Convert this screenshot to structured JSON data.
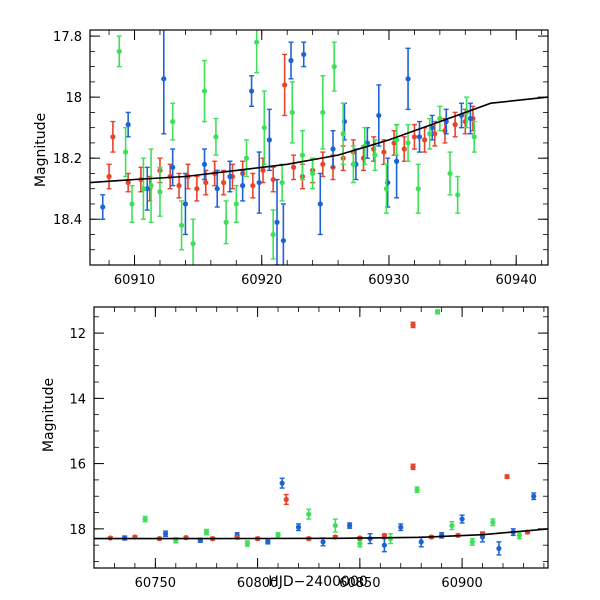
{
  "chart_data": [
    {
      "type": "scatter",
      "ylabel": "Magnitude",
      "xlabel": "",
      "xlim": [
        60906.5,
        60942.5
      ],
      "ylim": [
        18.55,
        17.78
      ],
      "y_inverted": true,
      "x_ticks": [
        60910,
        60920,
        60930,
        60940
      ],
      "y_ticks": [
        17.8,
        18,
        18.2,
        18.4
      ],
      "x_tick_labels": [
        "60910",
        "60920",
        "60930",
        "60940"
      ],
      "y_tick_labels": [
        "17.8",
        "18",
        "18.2",
        "18.4"
      ],
      "series": [
        {
          "color": "#e8432b",
          "points": [
            {
              "x": 60908.0,
              "y": 18.26,
              "err": 0.04
            },
            {
              "x": 60908.3,
              "y": 18.13,
              "err": 0.05
            },
            {
              "x": 60909.5,
              "y": 18.28,
              "err": 0.03
            },
            {
              "x": 60910.5,
              "y": 18.27,
              "err": 0.04
            },
            {
              "x": 60911.2,
              "y": 18.3,
              "err": 0.04
            },
            {
              "x": 60912.0,
              "y": 18.24,
              "err": 0.04
            },
            {
              "x": 60912.8,
              "y": 18.26,
              "err": 0.04
            },
            {
              "x": 60913.5,
              "y": 18.29,
              "err": 0.04
            },
            {
              "x": 60914.2,
              "y": 18.26,
              "err": 0.04
            },
            {
              "x": 60914.9,
              "y": 18.3,
              "err": 0.04
            },
            {
              "x": 60915.6,
              "y": 18.28,
              "err": 0.04
            },
            {
              "x": 60916.3,
              "y": 18.25,
              "err": 0.04
            },
            {
              "x": 60917.0,
              "y": 18.28,
              "err": 0.04
            },
            {
              "x": 60917.7,
              "y": 18.26,
              "err": 0.04
            },
            {
              "x": 60918.5,
              "y": 18.25,
              "err": 0.04
            },
            {
              "x": 60919.3,
              "y": 18.29,
              "err": 0.04
            },
            {
              "x": 60920.1,
              "y": 18.24,
              "err": 0.04
            },
            {
              "x": 60920.9,
              "y": 18.27,
              "err": 0.04
            },
            {
              "x": 60921.8,
              "y": 17.96,
              "err": 0.1
            },
            {
              "x": 60922.5,
              "y": 18.23,
              "err": 0.04
            },
            {
              "x": 60923.2,
              "y": 18.26,
              "err": 0.04
            },
            {
              "x": 60924.0,
              "y": 18.24,
              "err": 0.04
            },
            {
              "x": 60924.8,
              "y": 18.22,
              "err": 0.04
            },
            {
              "x": 60925.6,
              "y": 18.23,
              "err": 0.04
            },
            {
              "x": 60926.4,
              "y": 18.2,
              "err": 0.04
            },
            {
              "x": 60927.2,
              "y": 18.18,
              "err": 0.04
            },
            {
              "x": 60928.0,
              "y": 18.2,
              "err": 0.04
            },
            {
              "x": 60928.8,
              "y": 18.17,
              "err": 0.04
            },
            {
              "x": 60929.6,
              "y": 18.18,
              "err": 0.04
            },
            {
              "x": 60930.4,
              "y": 18.15,
              "err": 0.04
            },
            {
              "x": 60931.2,
              "y": 18.17,
              "err": 0.04
            },
            {
              "x": 60932.0,
              "y": 18.13,
              "err": 0.04
            },
            {
              "x": 60932.8,
              "y": 18.14,
              "err": 0.04
            },
            {
              "x": 60933.6,
              "y": 18.12,
              "err": 0.04
            },
            {
              "x": 60934.4,
              "y": 18.11,
              "err": 0.04
            },
            {
              "x": 60935.2,
              "y": 18.09,
              "err": 0.04
            },
            {
              "x": 60936.0,
              "y": 18.08,
              "err": 0.04
            },
            {
              "x": 60936.6,
              "y": 18.07,
              "err": 0.04
            }
          ]
        },
        {
          "color": "#1e63d6",
          "points": [
            {
              "x": 60907.5,
              "y": 18.36,
              "err": 0.04
            },
            {
              "x": 60909.5,
              "y": 18.09,
              "err": 0.04
            },
            {
              "x": 60911.0,
              "y": 18.3,
              "err": 0.07
            },
            {
              "x": 60912.3,
              "y": 17.94,
              "err": 0.18
            },
            {
              "x": 60913.0,
              "y": 18.23,
              "err": 0.06
            },
            {
              "x": 60914.0,
              "y": 18.35,
              "err": 0.1
            },
            {
              "x": 60915.5,
              "y": 18.22,
              "err": 0.05
            },
            {
              "x": 60916.5,
              "y": 18.3,
              "err": 0.06
            },
            {
              "x": 60917.5,
              "y": 18.26,
              "err": 0.05
            },
            {
              "x": 60918.5,
              "y": 18.29,
              "err": 0.05
            },
            {
              "x": 60919.2,
              "y": 17.98,
              "err": 0.05
            },
            {
              "x": 60919.8,
              "y": 18.28,
              "err": 0.1
            },
            {
              "x": 60920.6,
              "y": 18.14,
              "err": 0.1
            },
            {
              "x": 60921.2,
              "y": 18.41,
              "err": 0.14
            },
            {
              "x": 60921.7,
              "y": 18.47,
              "err": 0.12
            },
            {
              "x": 60922.3,
              "y": 17.88,
              "err": 0.06
            },
            {
              "x": 60923.3,
              "y": 17.86,
              "err": 0.04
            },
            {
              "x": 60924.6,
              "y": 18.35,
              "err": 0.1
            },
            {
              "x": 60925.6,
              "y": 18.17,
              "err": 0.06
            },
            {
              "x": 60926.5,
              "y": 18.08,
              "err": 0.06
            },
            {
              "x": 60927.4,
              "y": 18.22,
              "err": 0.05
            },
            {
              "x": 60928.3,
              "y": 18.15,
              "err": 0.05
            },
            {
              "x": 60929.2,
              "y": 18.06,
              "err": 0.1
            },
            {
              "x": 60929.9,
              "y": 18.28,
              "err": 0.08
            },
            {
              "x": 60930.6,
              "y": 18.21,
              "err": 0.12
            },
            {
              "x": 60931.5,
              "y": 17.94,
              "err": 0.1
            },
            {
              "x": 60932.4,
              "y": 18.13,
              "err": 0.05
            },
            {
              "x": 60933.4,
              "y": 18.1,
              "err": 0.04
            },
            {
              "x": 60934.5,
              "y": 18.08,
              "err": 0.04
            },
            {
              "x": 60935.7,
              "y": 18.06,
              "err": 0.04
            },
            {
              "x": 60936.4,
              "y": 18.07,
              "err": 0.05
            }
          ]
        },
        {
          "color": "#3ee05a",
          "points": [
            {
              "x": 60908.8,
              "y": 17.85,
              "err": 0.05
            },
            {
              "x": 60909.3,
              "y": 18.18,
              "err": 0.08
            },
            {
              "x": 60909.8,
              "y": 18.35,
              "err": 0.06
            },
            {
              "x": 60910.7,
              "y": 18.3,
              "err": 0.1
            },
            {
              "x": 60911.3,
              "y": 18.29,
              "err": 0.12
            },
            {
              "x": 60912.0,
              "y": 18.31,
              "err": 0.08
            },
            {
              "x": 60913.0,
              "y": 18.08,
              "err": 0.06
            },
            {
              "x": 60913.7,
              "y": 18.42,
              "err": 0.08
            },
            {
              "x": 60914.6,
              "y": 18.48,
              "err": 0.08
            },
            {
              "x": 60915.5,
              "y": 17.98,
              "err": 0.1
            },
            {
              "x": 60916.4,
              "y": 18.13,
              "err": 0.06
            },
            {
              "x": 60917.2,
              "y": 18.41,
              "err": 0.07
            },
            {
              "x": 60918.0,
              "y": 18.35,
              "err": 0.06
            },
            {
              "x": 60918.8,
              "y": 18.2,
              "err": 0.06
            },
            {
              "x": 60919.6,
              "y": 17.82,
              "err": 0.1
            },
            {
              "x": 60920.2,
              "y": 18.1,
              "err": 0.12
            },
            {
              "x": 60920.9,
              "y": 18.45,
              "err": 0.08
            },
            {
              "x": 60921.6,
              "y": 18.28,
              "err": 0.06
            },
            {
              "x": 60922.4,
              "y": 18.05,
              "err": 0.1
            },
            {
              "x": 60923.2,
              "y": 18.19,
              "err": 0.08
            },
            {
              "x": 60924.0,
              "y": 18.25,
              "err": 0.05
            },
            {
              "x": 60924.8,
              "y": 18.05,
              "err": 0.12
            },
            {
              "x": 60925.7,
              "y": 17.9,
              "err": 0.08
            },
            {
              "x": 60926.4,
              "y": 18.12,
              "err": 0.1
            },
            {
              "x": 60927.2,
              "y": 18.22,
              "err": 0.06
            },
            {
              "x": 60928.1,
              "y": 18.16,
              "err": 0.06
            },
            {
              "x": 60928.9,
              "y": 18.19,
              "err": 0.05
            },
            {
              "x": 60929.8,
              "y": 18.3,
              "err": 0.08
            },
            {
              "x": 60930.6,
              "y": 18.14,
              "err": 0.05
            },
            {
              "x": 60931.5,
              "y": 18.15,
              "err": 0.06
            },
            {
              "x": 60932.3,
              "y": 18.3,
              "err": 0.08
            },
            {
              "x": 60933.2,
              "y": 18.12,
              "err": 0.05
            },
            {
              "x": 60934.0,
              "y": 18.07,
              "err": 0.04
            },
            {
              "x": 60934.8,
              "y": 18.25,
              "err": 0.07
            },
            {
              "x": 60935.4,
              "y": 18.32,
              "err": 0.06
            },
            {
              "x": 60936.1,
              "y": 18.05,
              "err": 0.05
            },
            {
              "x": 60936.7,
              "y": 18.13,
              "err": 0.05
            }
          ]
        }
      ],
      "model_curve": {
        "color": "#000000",
        "x": [
          60906.5,
          60910,
          60914,
          60918,
          60922,
          60926,
          60930,
          60934,
          60938,
          60942.5
        ],
        "y": [
          18.28,
          18.27,
          18.26,
          18.24,
          18.22,
          18.19,
          18.14,
          18.08,
          18.02,
          18.0
        ]
      }
    },
    {
      "type": "scatter",
      "ylabel": "Magnitude",
      "xlabel": "HJD−2400000",
      "xlim": [
        60720,
        60942
      ],
      "ylim": [
        19.2,
        11.2
      ],
      "y_inverted": true,
      "x_ticks": [
        60750,
        60800,
        60850,
        60900
      ],
      "y_ticks": [
        12,
        14,
        16,
        18
      ],
      "x_tick_labels": [
        "60750",
        "60800",
        "60850",
        "60900"
      ],
      "y_tick_labels": [
        "12",
        "14",
        "16",
        "18"
      ],
      "series": [
        {
          "color": "#1e63d6",
          "points": [
            {
              "x": 60735,
              "y": 18.28,
              "err": 0.06
            },
            {
              "x": 60755,
              "y": 18.15,
              "err": 0.08
            },
            {
              "x": 60772,
              "y": 18.35,
              "err": 0.06
            },
            {
              "x": 60790,
              "y": 18.2,
              "err": 0.08
            },
            {
              "x": 60805,
              "y": 18.4,
              "err": 0.06
            },
            {
              "x": 60812,
              "y": 16.6,
              "err": 0.15
            },
            {
              "x": 60820,
              "y": 17.95,
              "err": 0.1
            },
            {
              "x": 60832,
              "y": 18.4,
              "err": 0.12
            },
            {
              "x": 60845,
              "y": 17.9,
              "err": 0.08
            },
            {
              "x": 60855,
              "y": 18.3,
              "err": 0.15
            },
            {
              "x": 60862,
              "y": 18.5,
              "err": 0.2
            },
            {
              "x": 60870,
              "y": 17.95,
              "err": 0.1
            },
            {
              "x": 60880,
              "y": 18.4,
              "err": 0.15
            },
            {
              "x": 60890,
              "y": 18.2,
              "err": 0.08
            },
            {
              "x": 60900,
              "y": 17.7,
              "err": 0.12
            },
            {
              "x": 60910,
              "y": 18.25,
              "err": 0.15
            },
            {
              "x": 60918,
              "y": 18.6,
              "err": 0.2
            },
            {
              "x": 60925,
              "y": 18.1,
              "err": 0.1
            },
            {
              "x": 60935,
              "y": 17.0,
              "err": 0.1
            }
          ]
        },
        {
          "color": "#3ee05a",
          "points": [
            {
              "x": 60745,
              "y": 17.7,
              "err": 0.08
            },
            {
              "x": 60760,
              "y": 18.35,
              "err": 0.08
            },
            {
              "x": 60775,
              "y": 18.1,
              "err": 0.08
            },
            {
              "x": 60795,
              "y": 18.45,
              "err": 0.08
            },
            {
              "x": 60810,
              "y": 18.2,
              "err": 0.08
            },
            {
              "x": 60825,
              "y": 17.55,
              "err": 0.15
            },
            {
              "x": 60838,
              "y": 17.9,
              "err": 0.2
            },
            {
              "x": 60850,
              "y": 18.45,
              "err": 0.1
            },
            {
              "x": 60865,
              "y": 18.3,
              "err": 0.15
            },
            {
              "x": 60878,
              "y": 16.8,
              "err": 0.08
            },
            {
              "x": 60888,
              "y": 11.35,
              "err": 0.06
            },
            {
              "x": 60895,
              "y": 17.9,
              "err": 0.12
            },
            {
              "x": 60905,
              "y": 18.4,
              "err": 0.1
            },
            {
              "x": 60915,
              "y": 17.8,
              "err": 0.1
            },
            {
              "x": 60928,
              "y": 18.2,
              "err": 0.1
            }
          ]
        },
        {
          "color": "#e8432b",
          "points": [
            {
              "x": 60728,
              "y": 18.28,
              "err": 0.03
            },
            {
              "x": 60740,
              "y": 18.25,
              "err": 0.04
            },
            {
              "x": 60752,
              "y": 18.3,
              "err": 0.04
            },
            {
              "x": 60765,
              "y": 18.27,
              "err": 0.04
            },
            {
              "x": 60778,
              "y": 18.3,
              "err": 0.04
            },
            {
              "x": 60790,
              "y": 18.26,
              "err": 0.04
            },
            {
              "x": 60800,
              "y": 18.3,
              "err": 0.04
            },
            {
              "x": 60814,
              "y": 17.1,
              "err": 0.15
            },
            {
              "x": 60825,
              "y": 18.3,
              "err": 0.04
            },
            {
              "x": 60838,
              "y": 18.25,
              "err": 0.04
            },
            {
              "x": 60850,
              "y": 18.28,
              "err": 0.04
            },
            {
              "x": 60862,
              "y": 18.2,
              "err": 0.04
            },
            {
              "x": 60876,
              "y": 11.75,
              "err": 0.08
            },
            {
              "x": 60876,
              "y": 16.1,
              "err": 0.08
            },
            {
              "x": 60885,
              "y": 18.25,
              "err": 0.04
            },
            {
              "x": 60898,
              "y": 18.2,
              "err": 0.04
            },
            {
              "x": 60910,
              "y": 18.15,
              "err": 0.04
            },
            {
              "x": 60922,
              "y": 16.4,
              "err": 0.05
            },
            {
              "x": 60932,
              "y": 18.1,
              "err": 0.04
            }
          ]
        }
      ],
      "model_curve": {
        "color": "#000000",
        "x": [
          60720,
          60780,
          60840,
          60880,
          60910,
          60942
        ],
        "y": [
          18.3,
          18.3,
          18.29,
          18.26,
          18.18,
          18.0
        ]
      }
    }
  ]
}
